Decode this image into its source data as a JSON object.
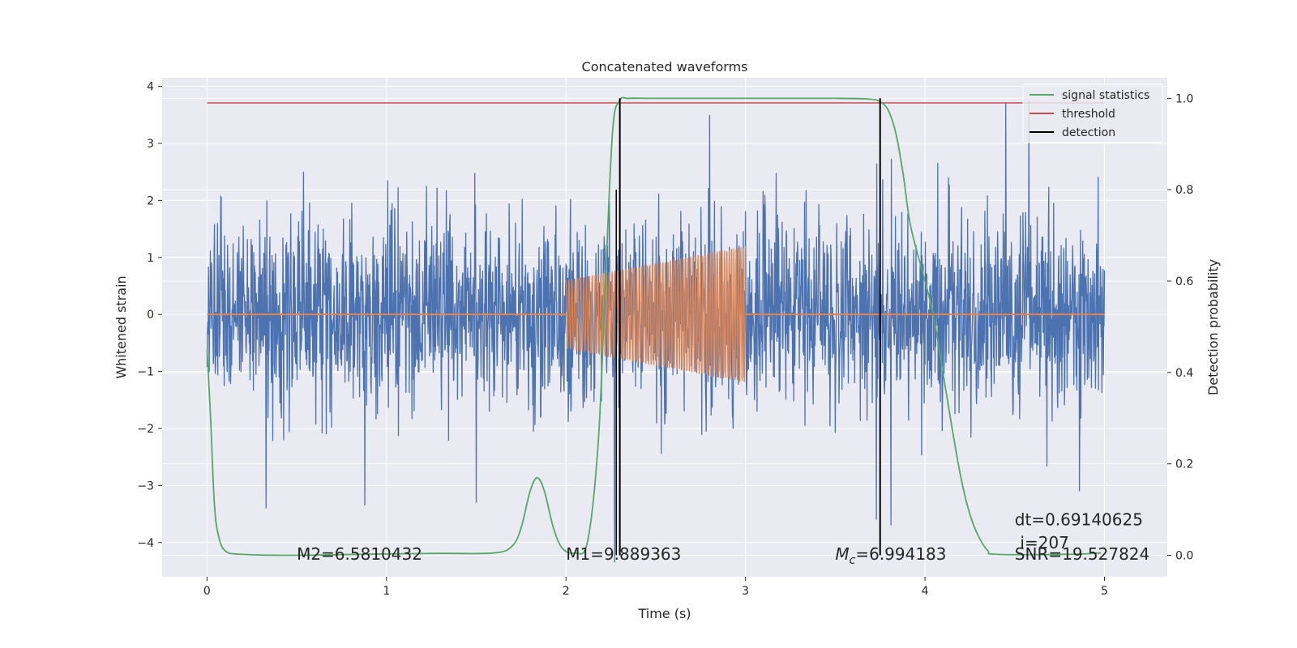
{
  "chart_data": {
    "type": "line",
    "title": "Concatenated waveforms",
    "xlabel": "Time (s)",
    "ylabel": "Whitened strain",
    "ylabel_right": "Detection probability",
    "xlim": [
      -0.25,
      5.35
    ],
    "ylim": [
      -4.6,
      4.15
    ],
    "ylim_right": [
      -0.047,
      1.045
    ],
    "x_ticks": [
      0,
      1,
      2,
      3,
      4,
      5
    ],
    "y_ticks": [
      -4,
      -3,
      -2,
      -1,
      0,
      1,
      2,
      3,
      4
    ],
    "y_ticks_right": [
      0.0,
      0.2,
      0.4,
      0.6,
      0.8,
      1.0
    ],
    "grid": true,
    "legend_position": "top-right",
    "colors": {
      "background": "#eaeaf2",
      "grid": "#ffffff",
      "strain": "#4c72b0",
      "template": "#dd8452",
      "signal_statistics": "#55a868",
      "threshold": "#c44e52",
      "detection": "#000000"
    },
    "series": [
      {
        "key": "strain",
        "axis": "left",
        "kind": "noise",
        "x_range": [
          0,
          5
        ],
        "amplitude_std": 0.85,
        "peak_extremes": [
          {
            "x": 0.33,
            "y": -3.4
          },
          {
            "x": 0.88,
            "y": -3.35
          },
          {
            "x": 1.5,
            "y": -3.3
          },
          {
            "x": 2.27,
            "y": -4.35
          },
          {
            "x": 2.8,
            "y": 3.5
          },
          {
            "x": 3.73,
            "y": -3.6
          },
          {
            "x": 3.81,
            "y": -3.7
          },
          {
            "x": 4.45,
            "y": 3.7
          },
          {
            "x": 4.58,
            "y": 3.75
          },
          {
            "x": 4.86,
            "y": -3.1
          }
        ]
      },
      {
        "key": "template",
        "axis": "left",
        "kind": "chirp",
        "x_range": [
          2.0,
          3.0
        ],
        "amplitude_start": 0.6,
        "amplitude_end": 1.2,
        "cycles": 60
      },
      {
        "key": "signal_statistics",
        "name": "signal statistics",
        "axis": "right",
        "x": [
          0,
          0.02,
          0.04,
          0.06,
          0.1,
          0.2,
          0.5,
          1.0,
          1.3,
          1.6,
          1.7,
          1.75,
          1.8,
          1.84,
          1.88,
          1.93,
          1.98,
          2.05,
          2.12,
          2.18,
          2.22,
          2.26,
          2.3,
          2.35,
          2.5,
          3.0,
          3.5,
          3.7,
          3.76,
          3.8,
          3.84,
          3.88,
          3.92,
          4.0,
          4.05,
          4.1,
          4.15,
          4.2,
          4.25,
          4.3,
          4.35,
          4.4,
          4.8,
          4.98
        ],
        "y": [
          0.45,
          0.3,
          0.12,
          0.05,
          0.01,
          0.002,
          0.0,
          0.003,
          0.004,
          0.005,
          0.02,
          0.06,
          0.14,
          0.17,
          0.14,
          0.06,
          0.015,
          0.005,
          0.03,
          0.25,
          0.6,
          0.93,
          0.995,
          1.0,
          1.0,
          1.0,
          1.0,
          0.998,
          0.99,
          0.97,
          0.92,
          0.83,
          0.72,
          0.6,
          0.52,
          0.4,
          0.28,
          0.17,
          0.09,
          0.04,
          0.01,
          0.002,
          0.002,
          0.005
        ]
      },
      {
        "key": "threshold",
        "name": "threshold",
        "axis": "right",
        "x": [
          0,
          5
        ],
        "y": [
          0.99,
          0.99
        ]
      },
      {
        "key": "detection",
        "name": "detection",
        "axis": "right",
        "kind": "vlines",
        "x": [
          2.3,
          3.75
        ],
        "y": [
          0,
          1.0
        ]
      }
    ],
    "extra_vlines": [
      {
        "x": 2.28,
        "y": [
          0,
          0.8
        ]
      }
    ],
    "legend": [
      "signal statistics",
      "threshold",
      "detection"
    ],
    "annotations": [
      {
        "key": "m2",
        "text": "M2=6.5810432",
        "x": 0.5,
        "y": -4.3
      },
      {
        "key": "m1",
        "text": "M1=9.889363",
        "x": 2.0,
        "y": -4.3
      },
      {
        "key": "mc",
        "text": "=6.994183",
        "x": 3.5,
        "y": -4.3
      },
      {
        "key": "dt",
        "text": "dt=0.69140625",
        "x": 4.5,
        "y": -3.7
      },
      {
        "key": "i",
        "text": "i=207",
        "x": 4.53,
        "y": -4.1
      },
      {
        "key": "snr",
        "text": "SNR=19.527824",
        "x": 4.5,
        "y": -4.3
      }
    ],
    "mc_label": {
      "base": "M",
      "sub": "c"
    }
  }
}
